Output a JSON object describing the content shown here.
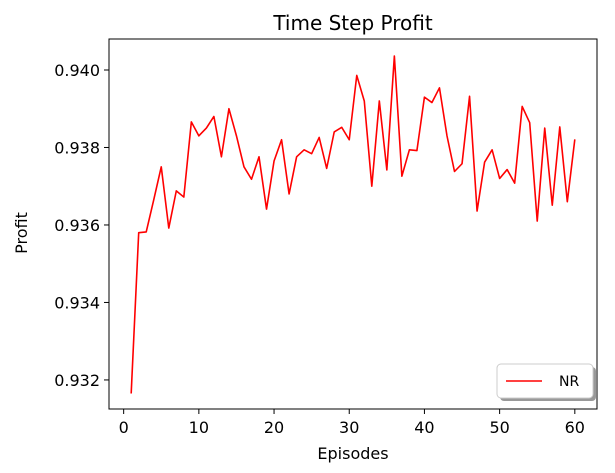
{
  "chart_data": {
    "type": "line",
    "title": "Time Step Profit",
    "xlabel": "Episodes",
    "ylabel": "Profit",
    "xlim": [
      -1.95,
      62.95
    ],
    "ylim": [
      0.93125,
      0.9408
    ],
    "x_ticks": [
      0,
      10,
      20,
      30,
      40,
      50,
      60
    ],
    "x_tick_labels": [
      "0",
      "10",
      "20",
      "30",
      "40",
      "50",
      "60"
    ],
    "y_ticks": [
      0.932,
      0.934,
      0.936,
      0.938,
      0.94
    ],
    "y_tick_labels": [
      "0.932",
      "0.934",
      "0.936",
      "0.938",
      "0.940"
    ],
    "grid": false,
    "legend": {
      "position": "lower right",
      "entries": [
        "NR"
      ]
    },
    "series": [
      {
        "name": "NR",
        "color": "#ff0000",
        "x": [
          1,
          2,
          3,
          4,
          5,
          6,
          7,
          8,
          9,
          10,
          11,
          12,
          13,
          14,
          15,
          16,
          17,
          18,
          19,
          20,
          21,
          22,
          23,
          24,
          25,
          26,
          27,
          28,
          29,
          30,
          31,
          32,
          33,
          34,
          35,
          36,
          37,
          38,
          39,
          40,
          41,
          42,
          43,
          44,
          45,
          46,
          47,
          48,
          49,
          50,
          51,
          52,
          53,
          54,
          55,
          56,
          57,
          58,
          59,
          60
        ],
        "values": [
          0.93165,
          0.9358,
          0.93582,
          0.93665,
          0.9375,
          0.93592,
          0.93688,
          0.93672,
          0.93866,
          0.9383,
          0.9385,
          0.9388,
          0.93776,
          0.939,
          0.9383,
          0.9375,
          0.93718,
          0.93776,
          0.93641,
          0.93765,
          0.9382,
          0.9368,
          0.93776,
          0.93794,
          0.93784,
          0.93826,
          0.93746,
          0.9384,
          0.93852,
          0.9382,
          0.93986,
          0.9392,
          0.937,
          0.9392,
          0.93742,
          0.94036,
          0.93726,
          0.93794,
          0.93792,
          0.9393,
          0.93916,
          0.93954,
          0.9383,
          0.93738,
          0.93758,
          0.93932,
          0.93636,
          0.93762,
          0.93794,
          0.9372,
          0.93743,
          0.93708,
          0.93906,
          0.93864,
          0.9361,
          0.9385,
          0.93651,
          0.93853,
          0.9366,
          0.93821
        ]
      }
    ]
  }
}
